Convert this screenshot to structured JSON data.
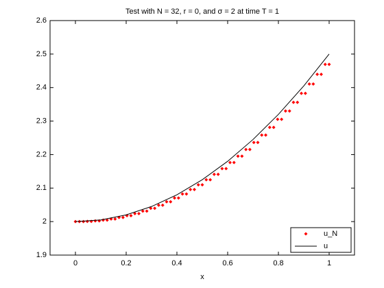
{
  "chart_data": {
    "type": "line",
    "title": "Test with N = 32, r = 0, and σ = 2 at time T = 1",
    "x_label": "x",
    "xlim": [
      -0.1,
      1.1
    ],
    "xticks": [
      0,
      0.2,
      0.4,
      0.6,
      0.8,
      1
    ],
    "ylim": [
      1.9,
      2.6
    ],
    "yticks": [
      1.9,
      2,
      2.1,
      2.2,
      2.3,
      2.4,
      2.5,
      2.6
    ],
    "legend": "lower right",
    "series": [
      {
        "name": "u_N",
        "color": "#ff0000",
        "style": "marker",
        "x": [
          0,
          0.0156,
          0.0313,
          0.0469,
          0.0625,
          0.0781,
          0.0938,
          0.1094,
          0.125,
          0.1406,
          0.1563,
          0.1719,
          0.1875,
          0.2031,
          0.2188,
          0.2344,
          0.25,
          0.2656,
          0.2813,
          0.2969,
          0.3125,
          0.3281,
          0.3438,
          0.3594,
          0.375,
          0.3906,
          0.4063,
          0.4219,
          0.4375,
          0.4531,
          0.4688,
          0.4844,
          0.5,
          0.5156,
          0.5313,
          0.5469,
          0.5625,
          0.5781,
          0.5938,
          0.6094,
          0.625,
          0.6406,
          0.6563,
          0.6719,
          0.6875,
          0.7031,
          0.7188,
          0.7344,
          0.75,
          0.7656,
          0.7813,
          0.7969,
          0.8125,
          0.8281,
          0.8438,
          0.8594,
          0.875,
          0.8906,
          0.9063,
          0.9219,
          0.9375,
          0.9531,
          0.9688,
          0.9844,
          1
        ],
        "values": [
          2,
          2,
          2,
          2.0005,
          2.0005,
          2.002,
          2.002,
          2.0044,
          2.0044,
          2.0078,
          2.0078,
          2.0122,
          2.0122,
          2.0176,
          2.0176,
          2.0239,
          2.0239,
          2.0313,
          2.0313,
          2.0396,
          2.0396,
          2.0488,
          2.0488,
          2.0591,
          2.0591,
          2.0703,
          2.0703,
          2.0825,
          2.0825,
          2.0957,
          2.0957,
          2.1099,
          2.1099,
          2.125,
          2.125,
          2.1411,
          2.1411,
          2.1582,
          2.1582,
          2.1763,
          2.1763,
          2.1953,
          2.1953,
          2.2153,
          2.2153,
          2.2363,
          2.2363,
          2.2583,
          2.2583,
          2.2813,
          2.2813,
          2.3052,
          2.3052,
          2.3301,
          2.3301,
          2.356,
          2.356,
          2.3828,
          2.3828,
          2.4106,
          2.4106,
          2.4395,
          2.4395,
          2.4692,
          2.4692
        ]
      },
      {
        "name": "u",
        "color": "#000000",
        "style": "line",
        "x": [
          0,
          0.1,
          0.2,
          0.3,
          0.4,
          0.5,
          0.6,
          0.7,
          0.8,
          0.9,
          1
        ],
        "values": [
          2,
          2.005,
          2.02,
          2.045,
          2.08,
          2.125,
          2.18,
          2.245,
          2.32,
          2.405,
          2.5
        ]
      }
    ]
  }
}
